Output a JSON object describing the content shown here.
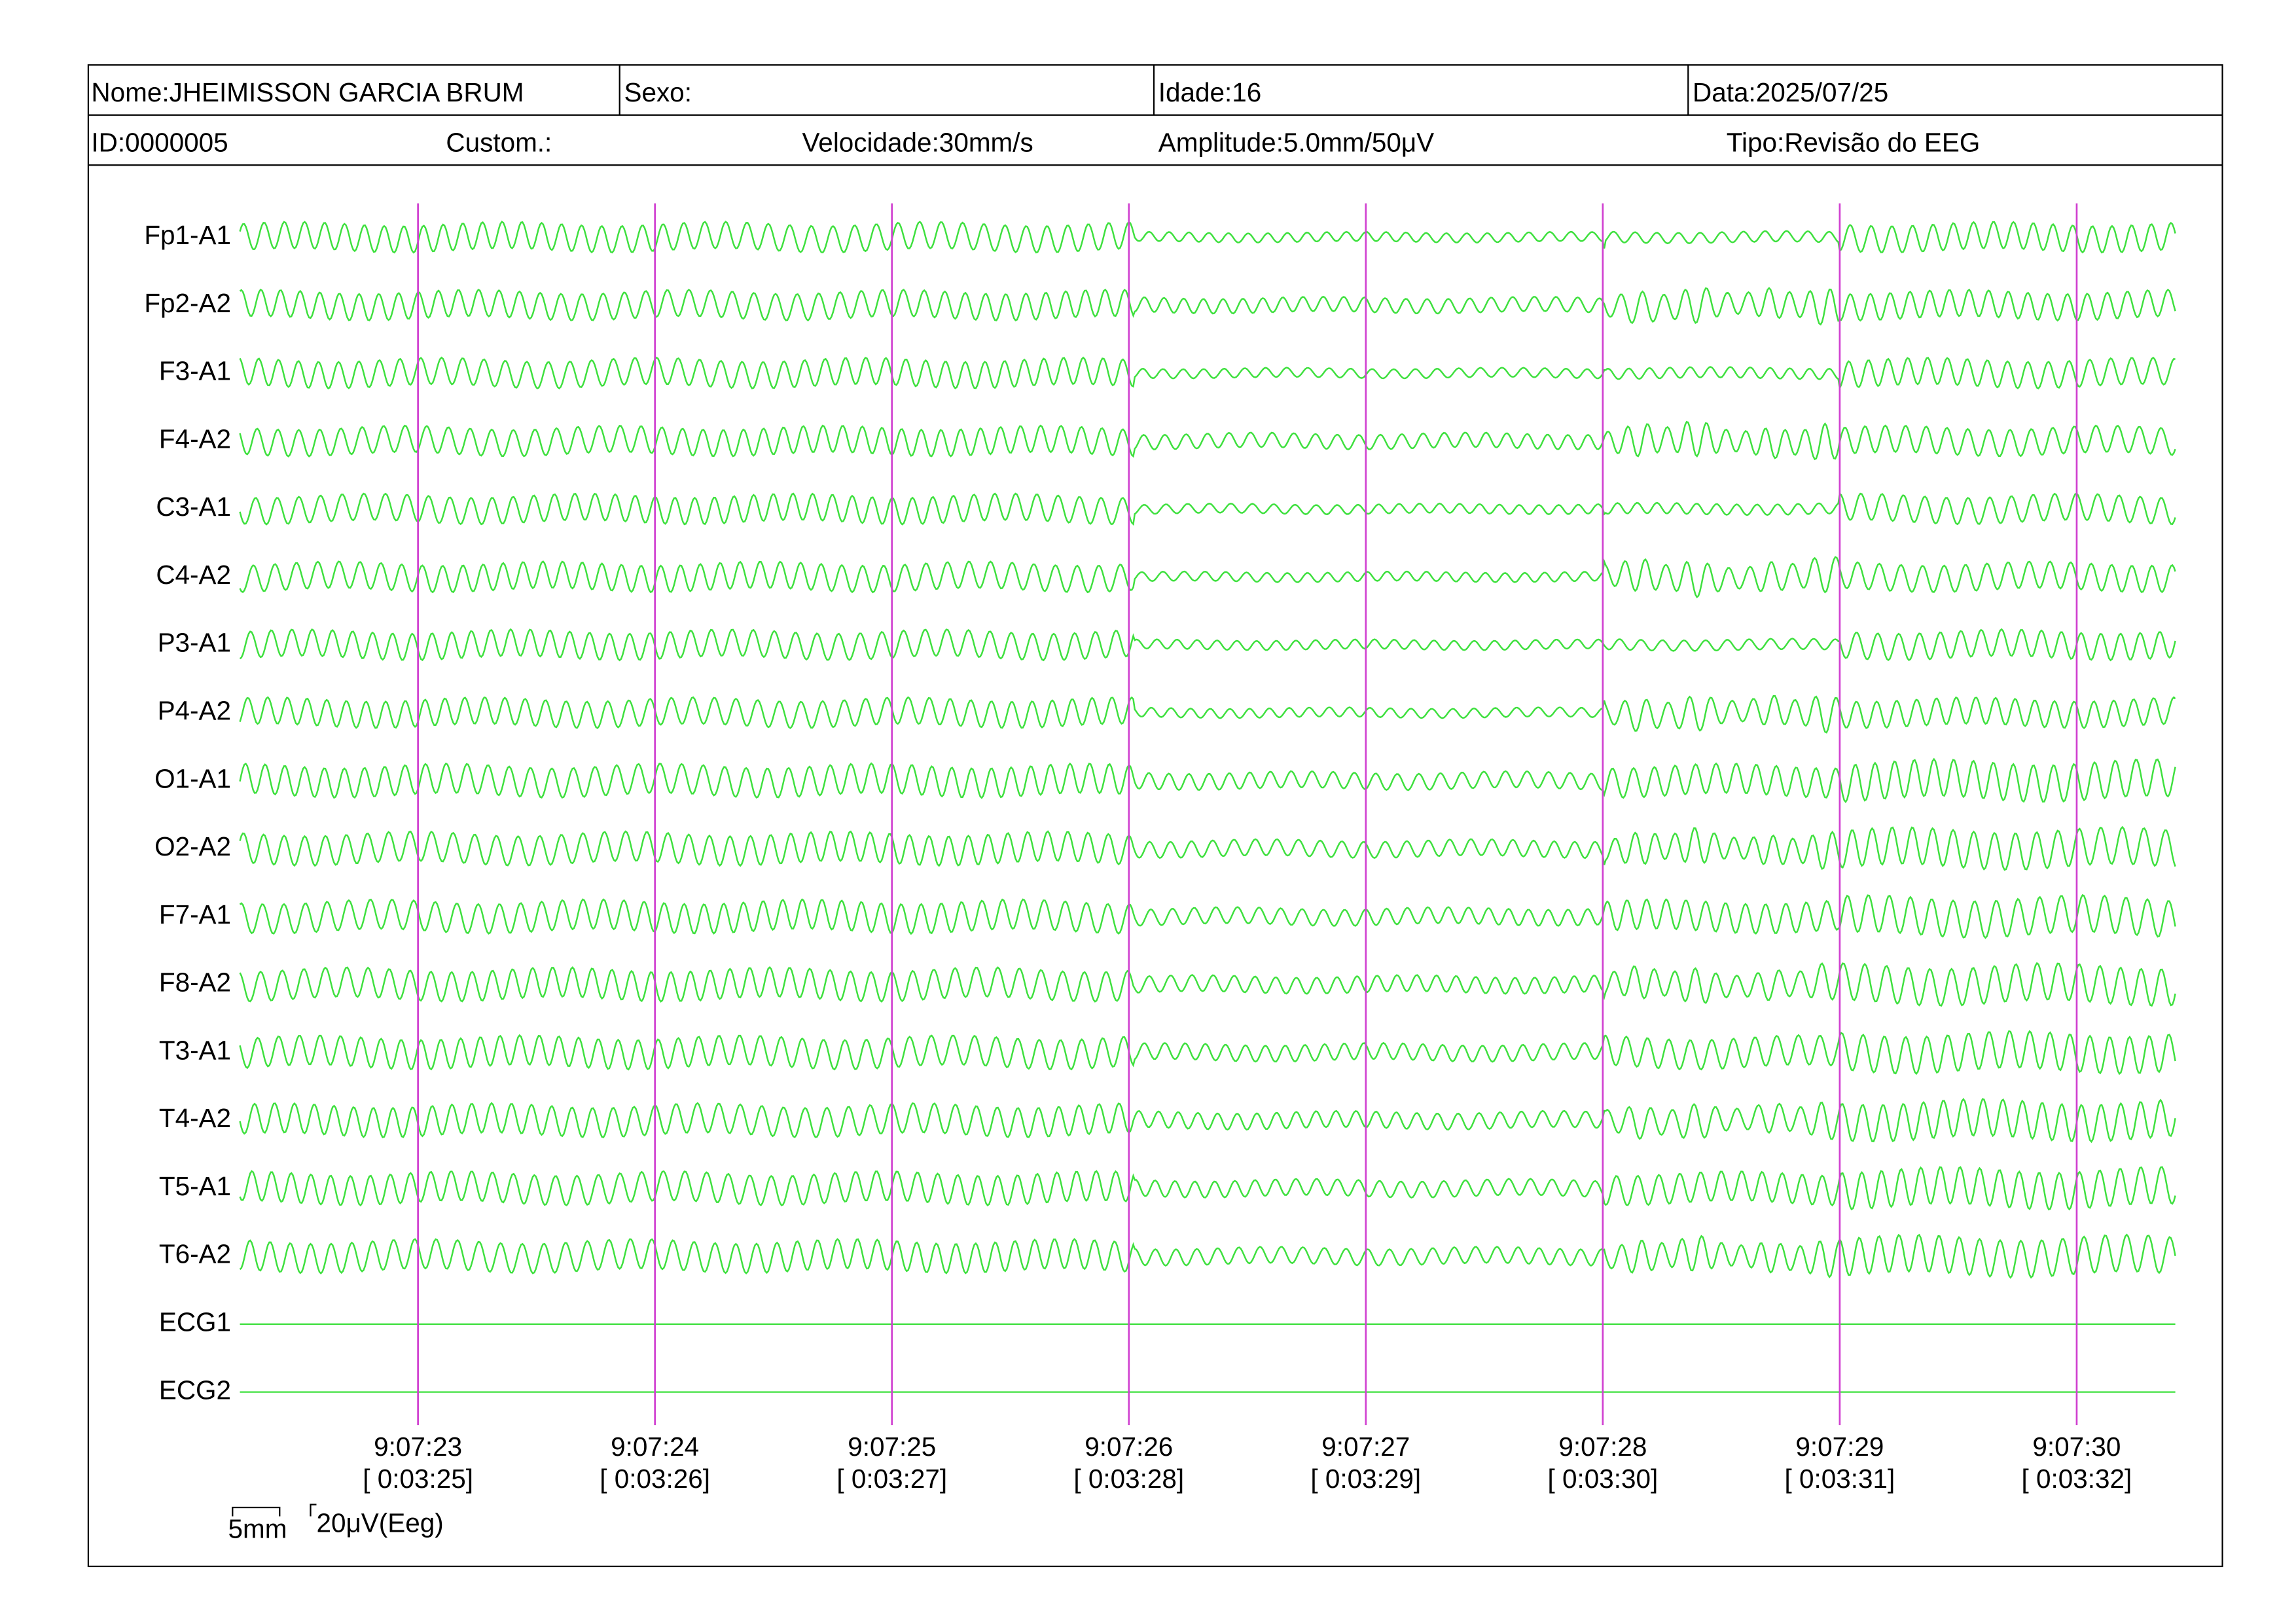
{
  "header": {
    "row1": [
      "Nome:JHEIMISSON GARCIA BRUM",
      "Sexo:",
      "Idade:16",
      "Data:2025/07/25"
    ],
    "row2": [
      "ID:0000005",
      "Custom.:",
      "Velocidade:30mm/s",
      "Amplitude:5.0mm/50μV",
      "Tipo:Revisão do EEG"
    ]
  },
  "channels": [
    "Fp1-A1",
    "Fp2-A2",
    "F3-A1",
    "F4-A2",
    "C3-A1",
    "C4-A2",
    "P3-A1",
    "P4-A2",
    "O1-A1",
    "O2-A2",
    "F7-A1",
    "F8-A2",
    "T3-A1",
    "T4-A2",
    "T5-A1",
    "T6-A2",
    "ECG1",
    "ECG2"
  ],
  "time_marks": [
    {
      "clock": "9:07:23",
      "elapsed": "[ 0:03:25]"
    },
    {
      "clock": "9:07:24",
      "elapsed": "[ 0:03:26]"
    },
    {
      "clock": "9:07:25",
      "elapsed": "[ 0:03:27]"
    },
    {
      "clock": "9:07:26",
      "elapsed": "[ 0:03:28]"
    },
    {
      "clock": "9:07:27",
      "elapsed": "[ 0:03:29]"
    },
    {
      "clock": "9:07:28",
      "elapsed": "[ 0:03:30]"
    },
    {
      "clock": "9:07:29",
      "elapsed": "[ 0:03:31]"
    },
    {
      "clock": "9:07:30",
      "elapsed": "[ 0:03:32]"
    }
  ],
  "scale": {
    "time": "5mm",
    "amplitude": "20μV(Eeg)"
  }
}
